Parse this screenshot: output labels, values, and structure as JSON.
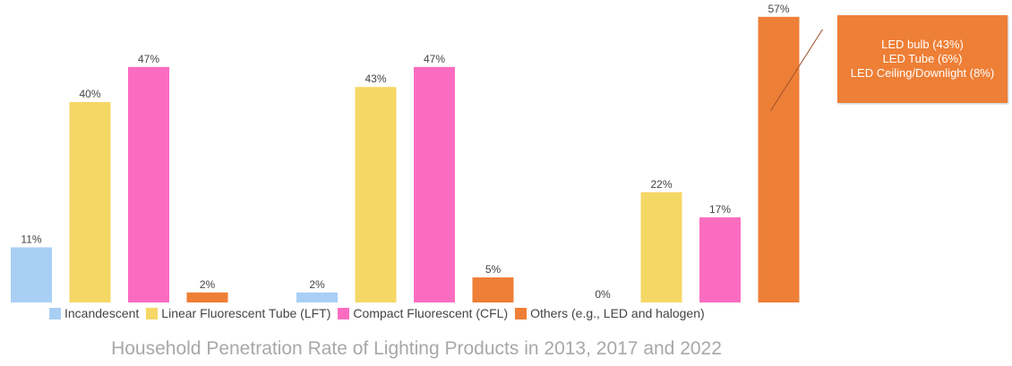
{
  "chart_data": {
    "type": "bar",
    "groups": [
      "",
      "",
      ""
    ],
    "series": [
      {
        "name": "Incandescent",
        "color": "#a9cff5",
        "values": [
          11,
          2,
          0
        ]
      },
      {
        "name": "Linear Fluorescent Tube (LFT)",
        "color": "#f5d766",
        "values": [
          40,
          43,
          22
        ]
      },
      {
        "name": "Compact Fluorescent (CFL)",
        "color": "#fb6cc0",
        "values": [
          47,
          47,
          17
        ]
      },
      {
        "name": "Others (e.g., LED and halogen)",
        "color": "#ee7f36",
        "values": [
          2,
          5,
          57
        ]
      }
    ],
    "data_labels": [
      [
        "11%",
        "40%",
        "47%",
        "2%"
      ],
      [
        "2%",
        "43%",
        "47%",
        "5%"
      ],
      [
        "0%",
        "22%",
        "17%",
        "57%"
      ]
    ],
    "ylim": [
      0,
      60
    ],
    "legend_position": "bottom",
    "title": "Household Penetration Rate of Lighting Products in 2013, 2017 and 2022"
  },
  "legend": [
    {
      "label": "Incandescent",
      "color": "#a9cff5"
    },
    {
      "label": "Linear Fluorescent Tube (LFT)",
      "color": "#f5d766"
    },
    {
      "label": "Compact Fluorescent (CFL)",
      "color": "#fb6cc0"
    },
    {
      "label": "Others (e.g., LED and halogen)",
      "color": "#ee7f36"
    }
  ],
  "callout": {
    "line1": "LED bulb (43%)",
    "line2": "LED Tube (6%)",
    "line3": "LED Ceiling/Downlight (8%)"
  }
}
